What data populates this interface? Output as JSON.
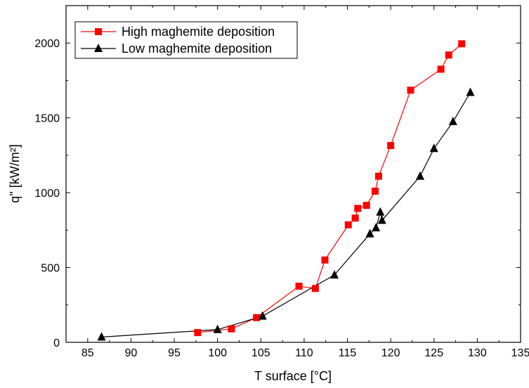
{
  "chart_data": {
    "type": "line",
    "xlabel": "T surface [°C]",
    "ylabel": "q\" [kW/m²]",
    "xlim": [
      82.5,
      135
    ],
    "ylim": [
      0,
      2250
    ],
    "xticks": [
      85,
      90,
      95,
      100,
      105,
      110,
      115,
      120,
      125,
      130,
      135
    ],
    "yticks": [
      0,
      500,
      1000,
      1500,
      2000
    ],
    "grid": false,
    "legend_position": "top-left",
    "series": [
      {
        "name": "High maghemite deposition",
        "color": "#ff0000",
        "marker": "square",
        "x": [
          97.7,
          101.6,
          104.5,
          109.4,
          111.3,
          112.4,
          115.1,
          115.9,
          116.2,
          117.2,
          118.2,
          118.6,
          120.0,
          122.3,
          125.8,
          126.7,
          128.2
        ],
        "y": [
          65,
          90,
          165,
          375,
          360,
          550,
          785,
          830,
          895,
          915,
          1010,
          1110,
          1315,
          1685,
          1825,
          1920,
          1995
        ]
      },
      {
        "name": "Low maghemite deposition",
        "color": "#000000",
        "marker": "triangle",
        "x": [
          86.6,
          100.0,
          105.2,
          113.5,
          117.6,
          118.3,
          118.8,
          119.0,
          123.4,
          125.0,
          127.2,
          129.2
        ],
        "y": [
          35,
          85,
          175,
          450,
          725,
          765,
          870,
          815,
          1110,
          1295,
          1475,
          1670
        ]
      }
    ]
  }
}
